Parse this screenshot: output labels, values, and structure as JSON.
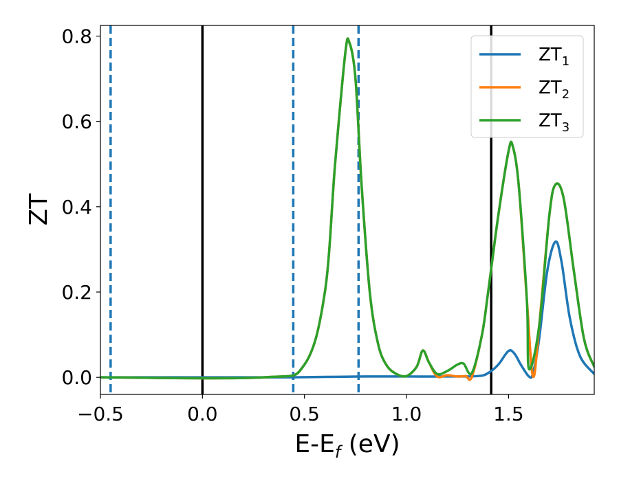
{
  "chart_data": {
    "type": "line",
    "title": "",
    "xlabel": "E-E",
    "xlabel_sub": "f",
    "xlabel_suffix": " (eV)",
    "ylabel": "ZT",
    "xlim": [
      -0.5,
      1.92
    ],
    "ylim": [
      -0.04,
      0.825
    ],
    "x_ticks": [
      -0.5,
      0.0,
      0.5,
      1.0,
      1.5
    ],
    "x_tick_labels": [
      "−0.5",
      "0.0",
      "0.5",
      "1.0",
      "1.5"
    ],
    "y_ticks": [
      0.0,
      0.2,
      0.4,
      0.6,
      0.8
    ],
    "y_tick_labels": [
      "0.0",
      "0.2",
      "0.4",
      "0.6",
      "0.8"
    ],
    "grid": false,
    "legend_position": "top-right",
    "vlines": [
      {
        "x": -0.45,
        "style": "dashed",
        "color": "#1f77b4"
      },
      {
        "x": 0.0,
        "style": "solid",
        "color": "#000000"
      },
      {
        "x": 0.445,
        "style": "dashed",
        "color": "#1f77b4"
      },
      {
        "x": 0.765,
        "style": "dashed",
        "color": "#1f77b4"
      },
      {
        "x": 1.415,
        "style": "solid",
        "color": "#000000"
      }
    ],
    "series": [
      {
        "name": "ZT",
        "name_sub": "1",
        "color": "#1f77b4",
        "x": [
          -0.5,
          0.0,
          0.4,
          0.6,
          0.8,
          1.0,
          1.2,
          1.35,
          1.4,
          1.45,
          1.5,
          1.53,
          1.56,
          1.6,
          1.62,
          1.65,
          1.69,
          1.73,
          1.76,
          1.8,
          1.85,
          1.92
        ],
        "y": [
          0.0,
          0.0,
          0.0,
          0.001,
          0.002,
          0.002,
          0.002,
          0.003,
          0.01,
          0.03,
          0.062,
          0.055,
          0.03,
          0.002,
          0.01,
          0.09,
          0.25,
          0.318,
          0.27,
          0.14,
          0.05,
          0.008
        ]
      },
      {
        "name": "ZT",
        "name_sub": "2",
        "color": "#ff7f0e",
        "x": [
          -0.5,
          0.3,
          0.5,
          0.6,
          0.65,
          0.7,
          0.72,
          0.75,
          0.78,
          0.82,
          0.86,
          0.9,
          0.95,
          1.0,
          1.05,
          1.08,
          1.11,
          1.15,
          1.2,
          1.25,
          1.29,
          1.32,
          1.37,
          1.4,
          1.45,
          1.5,
          1.52,
          1.55,
          1.59,
          1.62,
          1.65,
          1.7,
          1.73,
          1.77,
          1.82,
          1.87,
          1.92
        ],
        "y": [
          0.0,
          0.0,
          0.03,
          0.2,
          0.5,
          0.76,
          0.785,
          0.7,
          0.45,
          0.2,
          0.08,
          0.03,
          0.008,
          0.003,
          0.025,
          0.063,
          0.035,
          0.002,
          0.005,
          0.002,
          0.003,
          0.001,
          0.1,
          0.2,
          0.38,
          0.53,
          0.543,
          0.45,
          0.18,
          0.002,
          0.12,
          0.38,
          0.452,
          0.42,
          0.25,
          0.09,
          0.025
        ]
      },
      {
        "name": "ZT",
        "name_sub": "3",
        "color": "#2ca02c",
        "x": [
          -0.5,
          0.3,
          0.5,
          0.6,
          0.65,
          0.7,
          0.72,
          0.75,
          0.78,
          0.82,
          0.86,
          0.9,
          0.95,
          1.0,
          1.05,
          1.08,
          1.11,
          1.15,
          1.2,
          1.25,
          1.28,
          1.32,
          1.37,
          1.4,
          1.45,
          1.5,
          1.52,
          1.55,
          1.59,
          1.6,
          1.65,
          1.7,
          1.73,
          1.77,
          1.82,
          1.87,
          1.92
        ],
        "y": [
          0.0,
          0.0,
          0.03,
          0.2,
          0.5,
          0.76,
          0.785,
          0.7,
          0.45,
          0.2,
          0.08,
          0.03,
          0.008,
          0.003,
          0.025,
          0.063,
          0.035,
          0.008,
          0.015,
          0.03,
          0.032,
          0.01,
          0.1,
          0.2,
          0.38,
          0.53,
          0.543,
          0.45,
          0.18,
          0.02,
          0.12,
          0.38,
          0.452,
          0.42,
          0.25,
          0.09,
          0.025
        ]
      }
    ]
  }
}
